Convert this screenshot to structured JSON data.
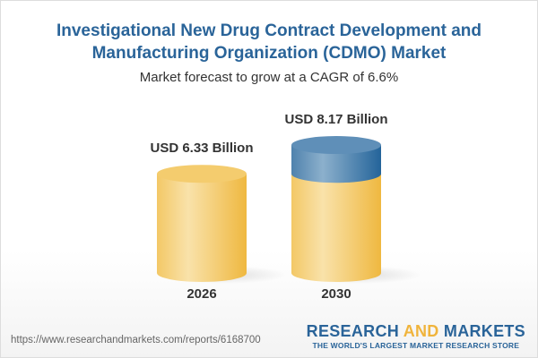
{
  "title": "Investigational New Drug Contract Development and Manufacturing Organization (CDMO) Market",
  "subtitle": "Market forecast to grow at a CAGR of 6.6%",
  "footer": {
    "url": "https://www.researchandmarkets.com/reports/6168700",
    "logo_line1_a": "RESEARCH ",
    "logo_line1_b": "AND",
    "logo_line1_c": " MARKETS",
    "logo_line2": "THE WORLD'S LARGEST MARKET RESEARCH STORE"
  },
  "colors": {
    "base": "#f2c35a",
    "growth": "#3f76a6",
    "title": "#2a6499"
  },
  "chart_data": {
    "type": "bar",
    "style": "3d-cylinder",
    "categories": [
      "2026",
      "2030"
    ],
    "values": [
      6.33,
      8.17
    ],
    "data_labels": [
      "USD 6.33 Billion",
      "USD 8.17 Billion"
    ],
    "unit": "USD Billion",
    "cagr": "6.6%"
  }
}
